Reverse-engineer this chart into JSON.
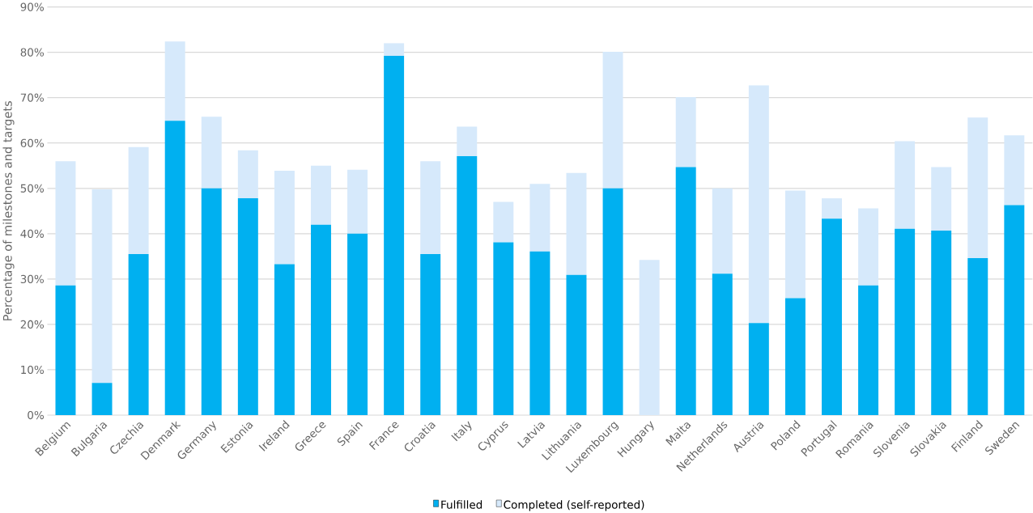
{
  "chart_data": {
    "type": "bar",
    "stacked": true,
    "ylabel": "Percentage of milestones and targets",
    "categories": [
      "Belgium",
      "Bulgaria",
      "Czechia",
      "Denmark",
      "Germany",
      "Estonia",
      "Ireland",
      "Greece",
      "Spain",
      "France",
      "Croatia",
      "Italy",
      "Cyprus",
      "Latvia",
      "Lithuania",
      "Luxembourg",
      "Hungary",
      "Malta",
      "Netherlands",
      "Austria",
      "Poland",
      "Portugal",
      "Romania",
      "Slovenia",
      "Slovakia",
      "Finland",
      "Sweden"
    ],
    "series": [
      {
        "name": "Fulfilled",
        "color": "#00b0f0",
        "values": [
          28.6,
          7.1,
          35.5,
          64.9,
          50.0,
          47.8,
          33.3,
          42.0,
          40.0,
          79.2,
          35.5,
          57.1,
          38.1,
          36.1,
          30.9,
          50.0,
          0,
          54.7,
          31.2,
          20.3,
          25.8,
          43.3,
          28.6,
          41.1,
          40.7,
          34.6,
          46.3
        ]
      },
      {
        "name": "Completed (self-reported)",
        "color": "#d6e9fb",
        "values": [
          27.4,
          42.7,
          23.6,
          17.5,
          15.8,
          10.6,
          20.6,
          13.0,
          14.1,
          2.8,
          20.5,
          6.5,
          8.9,
          14.9,
          22.5,
          30.1,
          34.2,
          15.4,
          18.8,
          52.4,
          23.7,
          4.5,
          17.0,
          19.3,
          14.0,
          31.0,
          15.4
        ]
      }
    ],
    "ylim": [
      0,
      90
    ],
    "yticks": [
      {
        "value": 0,
        "label": "0%"
      },
      {
        "value": 10,
        "label": "10%"
      },
      {
        "value": 20,
        "label": "20%"
      },
      {
        "value": 30,
        "label": "30%"
      },
      {
        "value": 40,
        "label": "40%"
      },
      {
        "value": 50,
        "label": "50%"
      },
      {
        "value": 60,
        "label": "60%"
      },
      {
        "value": 70,
        "label": "70%"
      },
      {
        "value": 80,
        "label": "80%"
      },
      {
        "value": 90,
        "label": "90%"
      }
    ],
    "grid": "y",
    "legend": "bottom"
  }
}
